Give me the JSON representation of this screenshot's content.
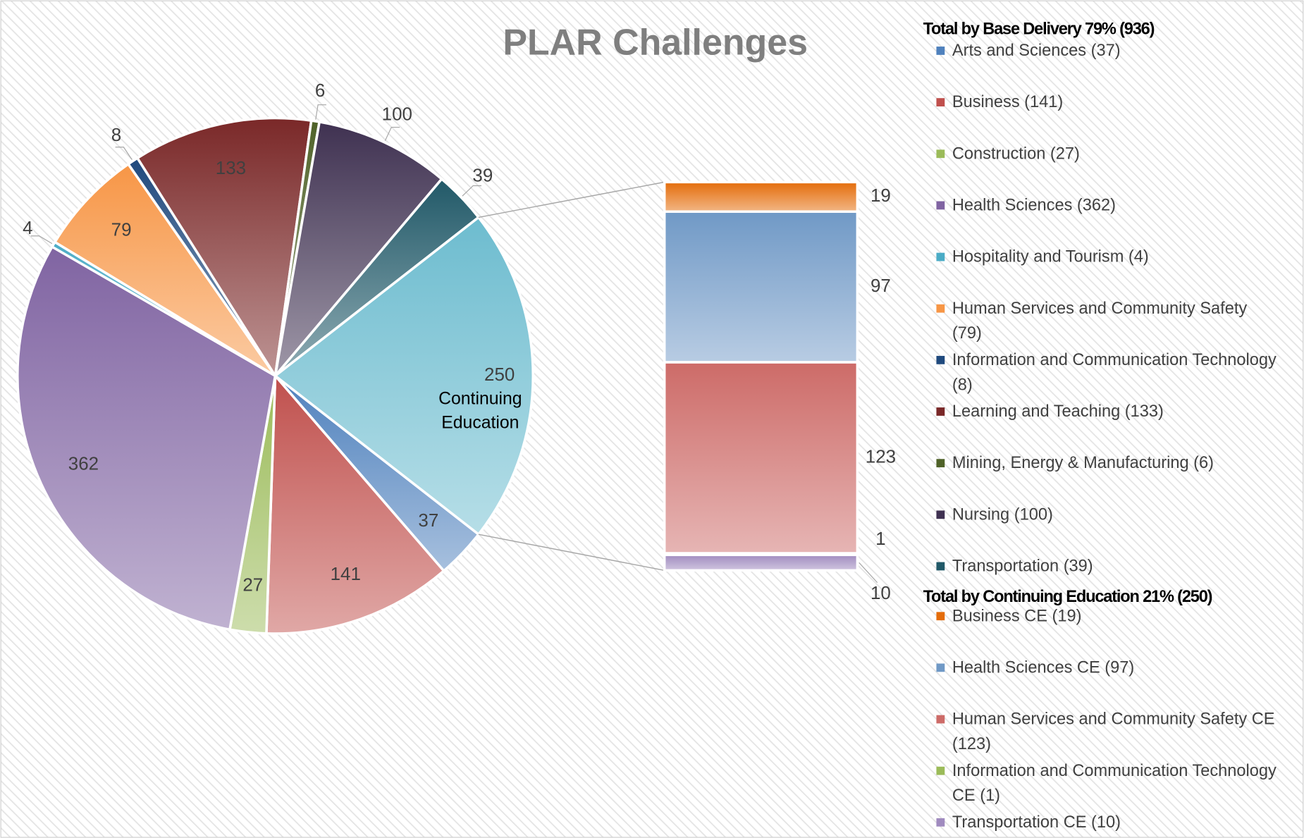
{
  "chart_data": {
    "type": "pie",
    "title": "PLAR Challenges",
    "categories": [
      "Arts and Sciences (37)",
      "Business (141)",
      "Construction (27)",
      "Health Sciences  (362)",
      "Hospitality and Tourism (4)",
      "Human Services and Community Safety (79)",
      "Information and Communication Technology (8)",
      "Learning and Teaching  (133)",
      "Mining, Energy & Manufacturing (6)",
      "Nursing  (100)",
      "Transportation (39)",
      "Continuing Education"
    ],
    "values": [
      37,
      141,
      27,
      362,
      4,
      79,
      8,
      133,
      6,
      100,
      39,
      250
    ],
    "colors": [
      "#4f81bd",
      "#c0504d",
      "#9bbb59",
      "#8064a2",
      "#4bacc6",
      "#f79646",
      "#1f497d",
      "#7a2828",
      "#4f6228",
      "#3f3151",
      "#215968",
      "#6dbccf"
    ],
    "legend_titles": [
      "Total by Base Delivery 79% (936)",
      "Total by Continuing Education 21% (250)"
    ],
    "bar": {
      "categories": [
        "Business CE (19)",
        "Health Sciences  CE (97)",
        "Human Services and Community Safety CE (123)",
        "Information and Communication Technology CE (1)",
        "Transportation CE (10)"
      ],
      "values": [
        19,
        97,
        123,
        1,
        10
      ],
      "colors": [
        "#e46c0a",
        "#7099c6",
        "#cd6b68",
        "#9bbb59",
        "#a08bbf"
      ]
    }
  }
}
